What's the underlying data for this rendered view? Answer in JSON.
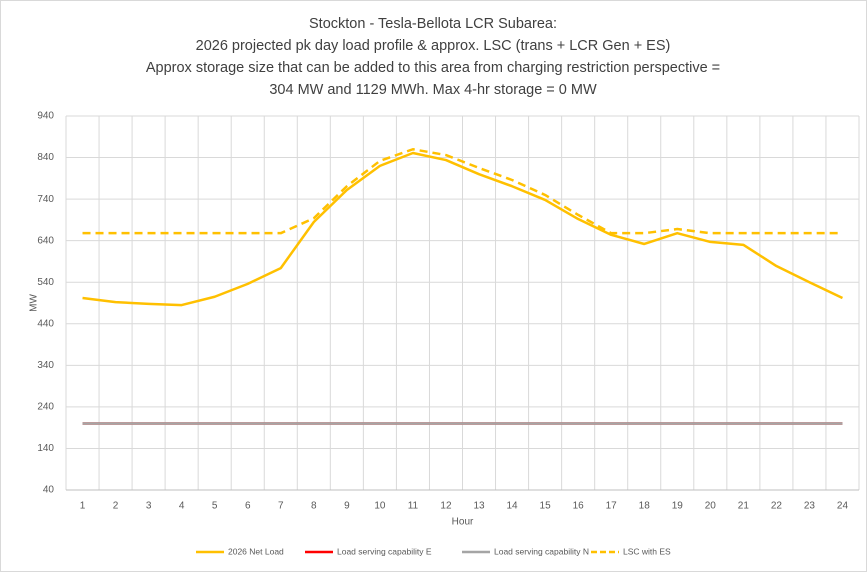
{
  "chart_data": {
    "type": "line",
    "title": [
      "Stockton - Tesla-Bellota LCR Subarea:",
      "2026 projected pk day load profile & approx. LSC (trans + LCR Gen + ES)",
      "Approx storage size that can be added to this area from charging restriction perspective =",
      "304 MW and 1129 MWh. Max 4-hr storage = 0 MW"
    ],
    "x_label": "Hour",
    "y_label": "MW",
    "categories": [
      "1",
      "2",
      "3",
      "4",
      "5",
      "6",
      "7",
      "8",
      "9",
      "10",
      "11",
      "12",
      "13",
      "14",
      "15",
      "16",
      "17",
      "18",
      "19",
      "20",
      "21",
      "22",
      "23",
      "24"
    ],
    "series": [
      {
        "name": "2026 Net Load",
        "color": "#ffc000",
        "dash": false,
        "values": [
          502,
          492,
          488,
          485,
          505,
          536,
          574,
          685,
          762,
          820,
          851,
          834,
          800,
          771,
          738,
          692,
          654,
          632,
          658,
          637,
          630,
          579,
          540,
          502
        ]
      },
      {
        "name": "Load serving capability E",
        "color": "#ff0000",
        "dash": false,
        "values": [
          200,
          200,
          200,
          200,
          200,
          200,
          200,
          200,
          200,
          200,
          200,
          200,
          200,
          200,
          200,
          200,
          200,
          200,
          200,
          200,
          200,
          200,
          200,
          200
        ]
      },
      {
        "name": "Load serving capability N",
        "color": "#a5a5a5",
        "dash": false,
        "values": [
          200,
          200,
          200,
          200,
          200,
          200,
          200,
          200,
          200,
          200,
          200,
          200,
          200,
          200,
          200,
          200,
          200,
          200,
          200,
          200,
          200,
          200,
          200,
          200
        ]
      },
      {
        "name": "LSC with ES",
        "color": "#ffc000",
        "dash": true,
        "values": [
          658,
          658,
          658,
          658,
          658,
          658,
          658,
          694,
          771,
          832,
          860,
          846,
          815,
          786,
          750,
          702,
          658,
          658,
          668,
          658,
          658,
          658,
          658,
          658
        ]
      }
    ],
    "ylim": [
      40,
      940
    ],
    "yticks": [
      40,
      140,
      240,
      340,
      440,
      540,
      640,
      740,
      840,
      940
    ],
    "grid": true
  }
}
